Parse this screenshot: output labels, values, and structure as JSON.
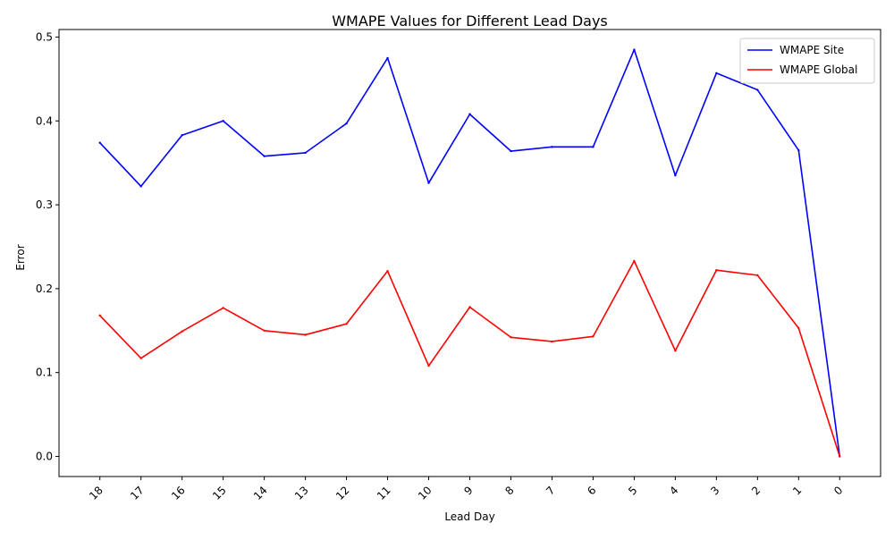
{
  "chart_data": {
    "type": "line",
    "title": "WMAPE Values for Different Lead Days",
    "xlabel": "Lead Day",
    "ylabel": "Error",
    "categories": [
      "18",
      "17",
      "16",
      "15",
      "14",
      "13",
      "12",
      "11",
      "10",
      "9",
      "8",
      "7",
      "6",
      "5",
      "4",
      "3",
      "2",
      "1",
      "0"
    ],
    "series": [
      {
        "name": "WMAPE Site",
        "color": "#0000ff",
        "values": [
          0.374,
          0.322,
          0.383,
          0.4,
          0.358,
          0.362,
          0.397,
          0.475,
          0.326,
          0.408,
          0.364,
          0.369,
          0.369,
          0.485,
          0.335,
          0.457,
          0.437,
          0.365,
          0.0
        ]
      },
      {
        "name": "WMAPE Global",
        "color": "#ff0000",
        "values": [
          0.168,
          0.117,
          0.149,
          0.177,
          0.15,
          0.145,
          0.158,
          0.221,
          0.108,
          0.178,
          0.142,
          0.137,
          0.143,
          0.233,
          0.126,
          0.222,
          0.216,
          0.153,
          0.0
        ]
      }
    ],
    "yticks": [
      "0.0",
      "0.1",
      "0.2",
      "0.3",
      "0.4",
      "0.5"
    ],
    "ylim": [
      -0.024,
      0.509
    ],
    "x_tick_rotation": 45,
    "grid": false,
    "legend_position": "top-right"
  }
}
